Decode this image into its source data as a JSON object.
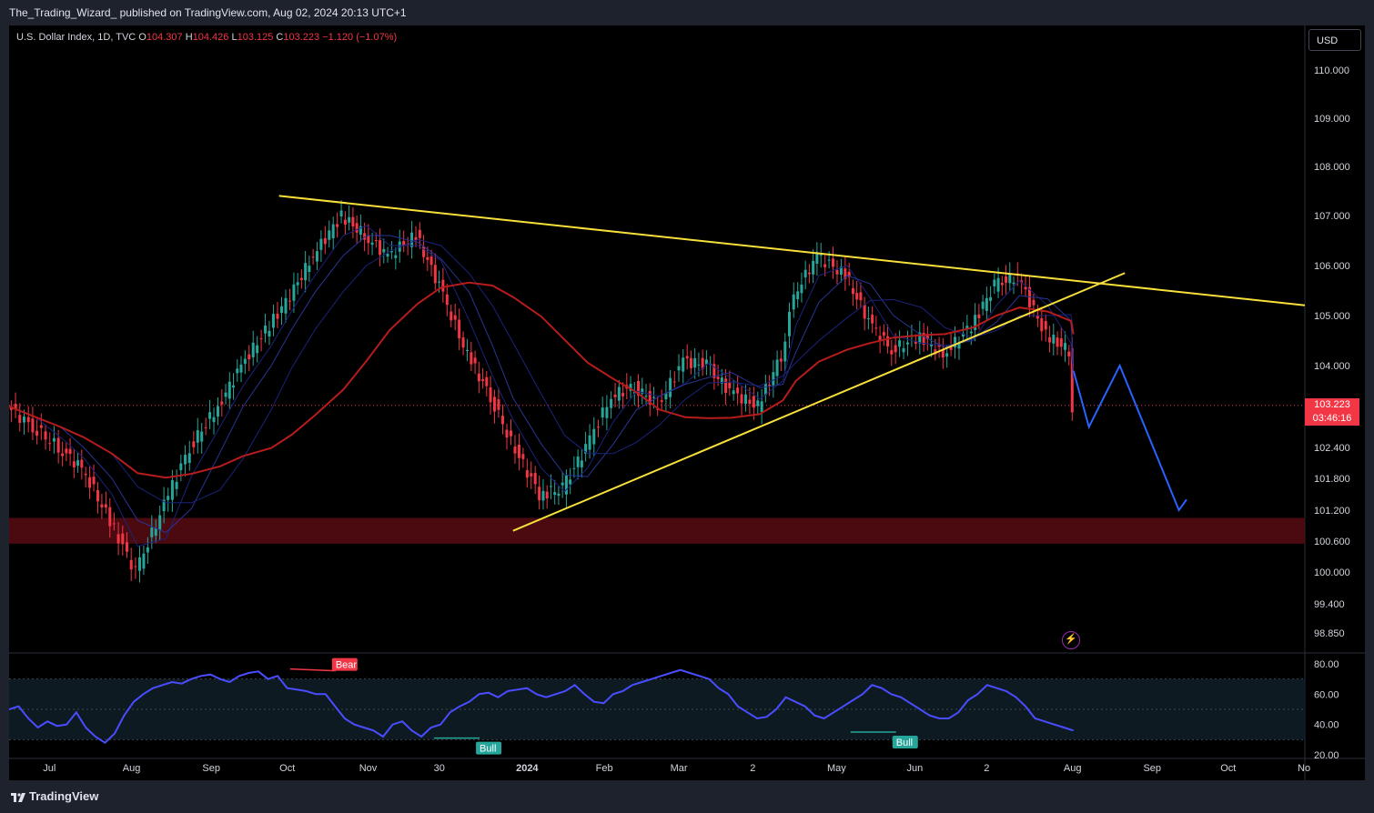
{
  "header": {
    "publisher_line": "The_Trading_Wizard_ published on TradingView.com, Aug 02, 2024 20:13 UTC+1"
  },
  "legend": {
    "symbol": "U.S. Dollar Index, 1D, TVC",
    "open_label": "O",
    "open": "104.307",
    "high_label": "H",
    "high": "104.426",
    "low_label": "L",
    "low": "103.125",
    "close_label": "C",
    "close": "103.223",
    "change": "−1.120 (−1.07%)"
  },
  "currency_button": "USD",
  "last_price": {
    "value": "103.223",
    "countdown": "03:46:16"
  },
  "footer": {
    "brand": "TradingView"
  },
  "colors": {
    "bull": "#26a69a",
    "bear": "#f23645",
    "trendline": "#f7e03a",
    "ema_slow": "#b71c1c",
    "ema_fast": "#1a237e",
    "projection": "#2962ff",
    "support_zone": "#4a0a10",
    "rsi": "#4a4dff"
  },
  "icons": {
    "flash": "lightning-icon"
  },
  "chart_data": [
    {
      "type": "line",
      "title": "U.S. Dollar Index, 1D, TVC",
      "x_tick_labels": [
        "Jul",
        "Aug",
        "Sep",
        "Oct",
        "Nov",
        "30",
        "2024",
        "Feb",
        "Mar",
        "2",
        "May",
        "Jun",
        "2",
        "Aug",
        "Sep",
        "Oct",
        "No"
      ],
      "y_tick_labels": [
        "110.000",
        "109.000",
        "108.000",
        "107.000",
        "106.000",
        "105.000",
        "104.000",
        "102.400",
        "101.800",
        "101.200",
        "100.600",
        "100.000",
        "99.400",
        "98.850"
      ],
      "x": [
        "2023-06-15",
        "2023-06-25",
        "2023-07-05",
        "2023-07-14",
        "2023-07-25",
        "2023-08-04",
        "2023-08-15",
        "2023-08-25",
        "2023-09-05",
        "2023-09-14",
        "2023-09-25",
        "2023-10-03",
        "2023-10-12",
        "2023-10-23",
        "2023-11-01",
        "2023-11-10",
        "2023-11-21",
        "2023-11-30",
        "2023-12-11",
        "2023-12-20",
        "2023-12-28",
        "2024-01-08",
        "2024-01-17",
        "2024-01-26",
        "2024-02-05",
        "2024-02-14",
        "2024-02-23",
        "2024-03-04",
        "2024-03-13",
        "2024-03-22",
        "2024-04-02",
        "2024-04-11",
        "2024-04-16",
        "2024-04-25",
        "2024-05-06",
        "2024-05-15",
        "2024-05-24",
        "2024-06-04",
        "2024-06-13",
        "2024-06-24",
        "2024-07-03",
        "2024-07-12",
        "2024-07-23",
        "2024-08-01",
        "2024-08-02"
      ],
      "series": [
        {
          "values": [
            103.2,
            102.8,
            102.4,
            102.0,
            101.0,
            100.0,
            101.3,
            102.4,
            103.2,
            104.0,
            104.8,
            105.4,
            106.2,
            107.0,
            106.6,
            106.2,
            106.6,
            105.6,
            104.2,
            103.4,
            102.5,
            101.5,
            101.6,
            102.4,
            103.4,
            103.6,
            103.2,
            104.1,
            104.0,
            103.5,
            103.2,
            104.2,
            105.4,
            106.2,
            105.8,
            104.9,
            104.3,
            104.6,
            104.2,
            104.8,
            105.6,
            105.8,
            104.6,
            104.3,
            103.2
          ]
        }
      ],
      "support_zone": [
        100.55,
        101.05
      ],
      "trendlines": [
        {
          "from": [
            "2023-09-28",
            107.4
          ],
          "to": [
            "2024-08-20",
            105.6
          ]
        },
        {
          "from": [
            "2023-12-28",
            100.8
          ],
          "to": [
            "2024-08-22",
            105.85
          ]
        }
      ],
      "projection_path": [
        [
          "2024-08-02",
          103.9
        ],
        [
          "2024-08-08",
          102.8
        ],
        [
          "2024-08-20",
          104.0
        ],
        [
          "2024-09-12",
          101.2
        ],
        [
          "2024-09-15",
          101.4
        ]
      ],
      "ylim": [
        98.6,
        110.4
      ]
    },
    {
      "type": "line",
      "title": "",
      "y_tick_labels": [
        "80.00",
        "60.00",
        "40.00",
        "20.00"
      ],
      "ylim": [
        20,
        80
      ],
      "bands": [
        30,
        50,
        70
      ],
      "values": [
        50,
        52,
        44,
        38,
        42,
        39,
        40,
        48,
        38,
        32,
        28,
        34,
        46,
        55,
        60,
        64,
        66,
        68,
        67,
        70,
        72,
        73,
        70,
        68,
        72,
        74,
        75,
        70,
        72,
        64,
        63,
        62,
        60,
        60,
        52,
        44,
        40,
        38,
        36,
        32,
        40,
        42,
        36,
        32,
        38,
        40,
        48,
        52,
        55,
        60,
        61,
        58,
        62,
        63,
        64,
        60,
        58,
        60,
        62,
        66,
        60,
        55,
        54,
        60,
        62,
        66,
        68,
        70,
        72,
        74,
        76,
        74,
        72,
        70,
        64,
        60,
        52,
        48,
        44,
        45,
        50,
        58,
        55,
        52,
        46,
        44,
        48,
        52,
        56,
        60,
        66,
        64,
        60,
        58,
        54,
        50,
        46,
        44,
        44,
        48,
        56,
        60,
        66,
        64,
        62,
        58,
        52,
        44,
        42,
        40,
        38,
        36
      ],
      "markers": [
        {
          "label": "Bear",
          "value": 73
        },
        {
          "label": "Bull",
          "value": 31
        },
        {
          "label": "Bull",
          "value": 41
        }
      ]
    }
  ]
}
